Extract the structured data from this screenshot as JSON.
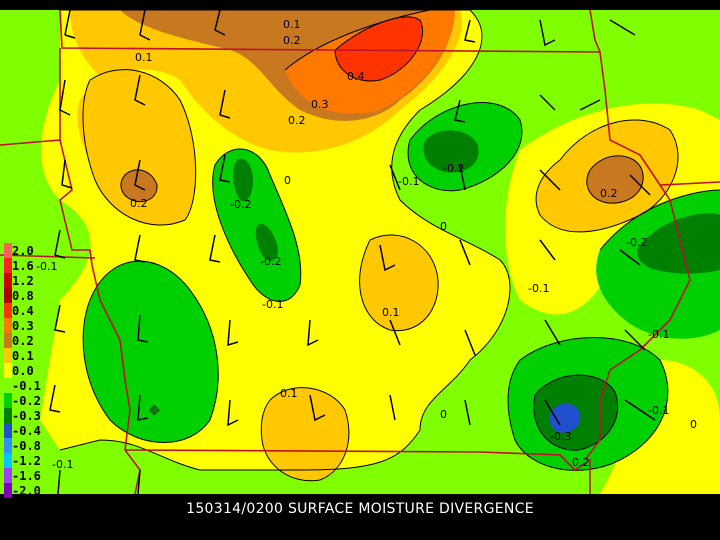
{
  "title": "150314/0200 SURFACE MOISTURE DIVERGENCE",
  "legend": {
    "entries": [
      {
        "label": "2.0",
        "color": "#ff6060"
      },
      {
        "label": "1.6",
        "color": "#ff2020"
      },
      {
        "label": "1.2",
        "color": "#d00000"
      },
      {
        "label": "0.8",
        "color": "#b00000"
      },
      {
        "label": "0.4",
        "color": "#ff3300"
      },
      {
        "label": "0.3",
        "color": "#ff7800"
      },
      {
        "label": "0.2",
        "color": "#c8781e"
      },
      {
        "label": "0.1",
        "color": "#ffc800"
      },
      {
        "label": "0.0",
        "color": "#ffff00"
      },
      {
        "label": "-0.1",
        "color": "#80ff00"
      },
      {
        "label": "-0.2",
        "color": "#00d000"
      },
      {
        "label": "-0.3",
        "color": "#008000"
      },
      {
        "label": "-0.4",
        "color": "#2050d0"
      },
      {
        "label": "-0.8",
        "color": "#3090ff"
      },
      {
        "label": "-1.2",
        "color": "#00c8ff"
      },
      {
        "label": "-1.6",
        "color": "#a040ff"
      },
      {
        "label": "-2.0",
        "color": "#8000c0"
      }
    ]
  },
  "contour_labels": [
    "0.1",
    "0.2",
    "0.1",
    "0.4",
    "0.3",
    "0.2",
    "0.2",
    "-0.2",
    "0",
    "-0.2",
    "-0.1",
    "-0.2",
    "-0.2",
    "0.2",
    "0",
    "-0.2",
    "-0.1",
    "0.1",
    "-0.1",
    "0.1",
    "-0.1",
    "0",
    "-0.3",
    "-0.1",
    "0.2",
    "0",
    "-0.1"
  ],
  "colors": {
    "state_border": "#c01030",
    "contour_line": "#000000",
    "wind_barb": "#000000",
    "background": "#000000",
    "title_text": "#ffffff"
  }
}
